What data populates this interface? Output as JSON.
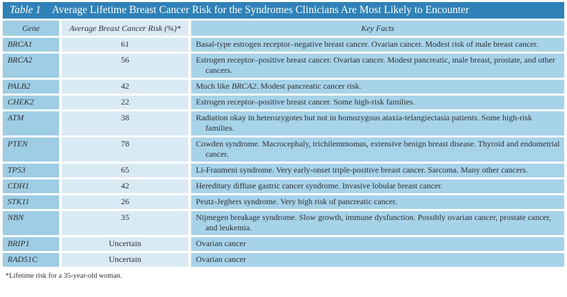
{
  "table": {
    "title_label": "Table 1",
    "title": "Average Lifetime Breast Cancer Risk for the Syndromes Clinicians Are Most Likely to Encounter",
    "columns": [
      "Gene",
      "Average Breast Cancer Risk (%)*",
      "Key Facts"
    ],
    "rows": [
      {
        "gene": "BRCA1",
        "risk": "61",
        "fact": [
          {
            "text": "Basal-type estrogen receptor–negative breast cancer. Ovarian cancer. Modest risk of male breast cancer."
          }
        ]
      },
      {
        "gene": "BRCA2",
        "risk": "56",
        "fact": [
          {
            "text": "Estrogen receptor–positive breast cancer. Ovarian cancer. Modest pancreatic, male breast, prostate, and other cancers."
          }
        ]
      },
      {
        "gene": "PALB2",
        "risk": "42",
        "fact": [
          {
            "text": "Much like "
          },
          {
            "text": "BRCA2",
            "italic": true
          },
          {
            "text": ". Modest pancreatic cancer risk."
          }
        ]
      },
      {
        "gene": "CHEK2",
        "risk": "22",
        "fact": [
          {
            "text": "Estrogen receptor–positive breast cancer. Some high-risk families."
          }
        ]
      },
      {
        "gene": "ATM",
        "risk": "38",
        "fact": [
          {
            "text": "Radiation okay in heterozygotes but not in homozygous ataxia-telangiectasia patients. Some high-risk families."
          }
        ]
      },
      {
        "gene": "PTEN",
        "risk": "78",
        "fact": [
          {
            "text": "Cowden syndrome. Macrocephaly, trichilemmomas, extensive benign breast disease. Thyroid and endometrial cancer."
          }
        ]
      },
      {
        "gene": "TP53",
        "risk": "65",
        "fact": [
          {
            "text": "Li-Fraumeni syndrome. Very early-onset triple-positive breast cancer. Sarcoma. Many other cancers."
          }
        ]
      },
      {
        "gene": "CDH1",
        "risk": "42",
        "fact": [
          {
            "text": "Hereditary diffuse gastric cancer syndrome. Invasive lobular breast cancer."
          }
        ]
      },
      {
        "gene": "STK11",
        "risk": "26",
        "fact": [
          {
            "text": "Peutz-Jeghers syndrome. Very high risk of pancreatic cancer."
          }
        ]
      },
      {
        "gene": "NBN",
        "risk": "35",
        "fact": [
          {
            "text": "Nijmegen breakage syndrome. Slow growth, immune dysfunction. Possibly ovarian cancer, prostate cancer, and leukemia."
          }
        ]
      },
      {
        "gene": "BRIP1",
        "risk": "Uncertain",
        "fact": [
          {
            "text": "Ovarian cancer"
          }
        ]
      },
      {
        "gene": "RAD51C",
        "risk": "Uncertain",
        "fact": [
          {
            "text": "Ovarian cancer"
          }
        ]
      }
    ],
    "footnote": "*Lifetime risk for a 35-year-old woman."
  },
  "colors": {
    "title_bar": "#2f81b7",
    "gene_cell": "#9ecde4",
    "facts_cell": "#a7d3e9",
    "risk_cell": "#daeaf5",
    "text": "#2b2f33",
    "title_text": "#ffffff"
  }
}
